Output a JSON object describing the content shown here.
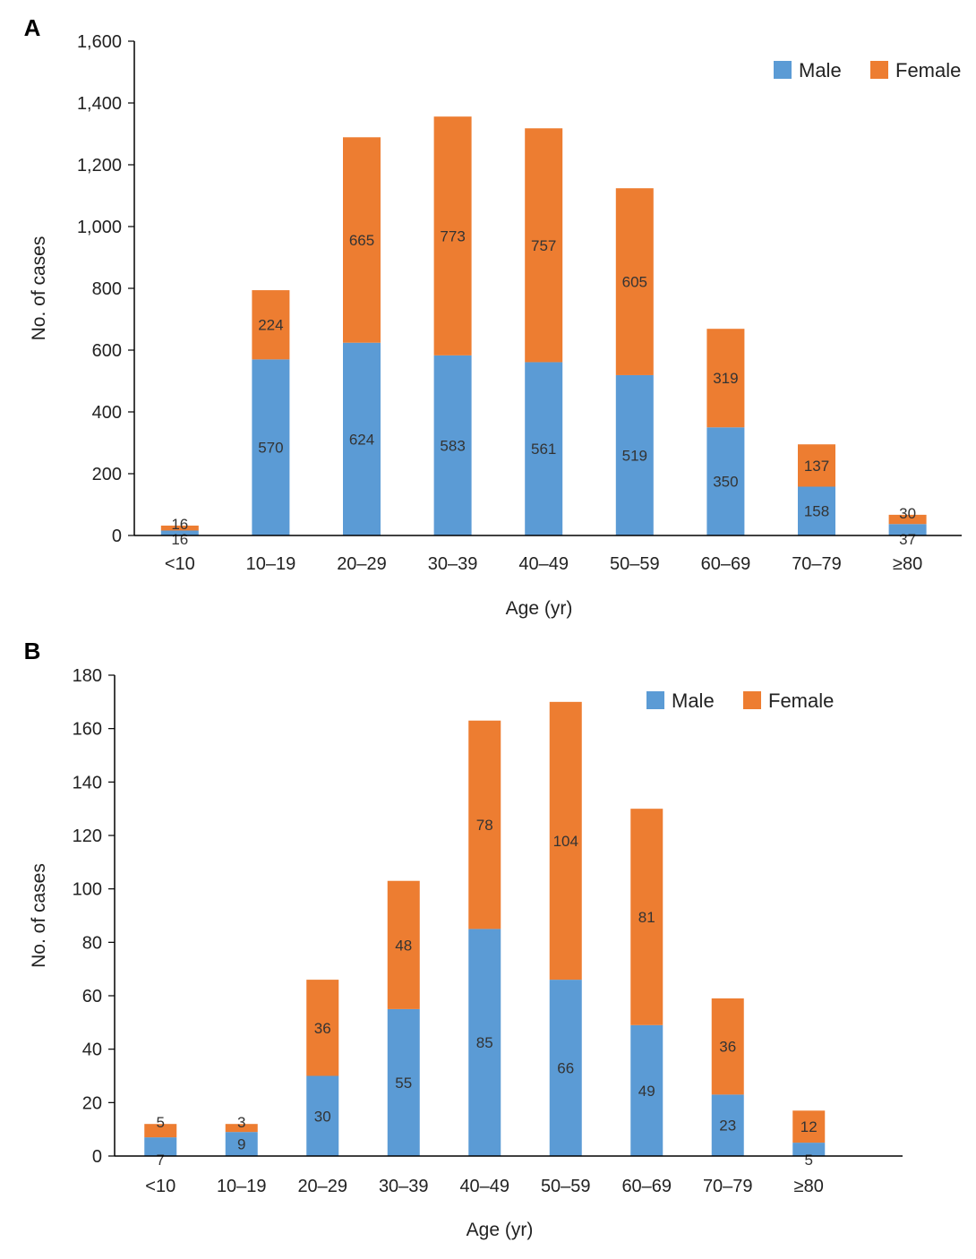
{
  "colors": {
    "male": "#5b9bd5",
    "female": "#ed7d31",
    "axis": "#000000"
  },
  "chart_data": [
    {
      "panel": "A",
      "type": "bar",
      "stacked": true,
      "categories": [
        "<10",
        "10–19",
        "20–29",
        "30–39",
        "40–49",
        "50–59",
        "60–69",
        "70–79",
        "≥80"
      ],
      "series": [
        {
          "name": "Male",
          "values": [
            16,
            570,
            624,
            583,
            561,
            519,
            350,
            158,
            37
          ]
        },
        {
          "name": "Female",
          "values": [
            16,
            224,
            665,
            773,
            757,
            605,
            319,
            137,
            30
          ]
        }
      ],
      "xlabel": "Age (yr)",
      "ylabel": "No. of cases",
      "ylim": [
        0,
        1600
      ],
      "yticks": [
        0,
        200,
        400,
        600,
        800,
        1000,
        1200,
        1400,
        1600
      ],
      "ytick_labels": [
        "0",
        "200",
        "400",
        "600",
        "800",
        "1,000",
        "1,200",
        "1,400",
        "1,600"
      ],
      "legend": "top-right"
    },
    {
      "panel": "B",
      "type": "bar",
      "stacked": true,
      "categories": [
        "<10",
        "10–19",
        "20–29",
        "30–39",
        "40–49",
        "50–59",
        "60–69",
        "70–79",
        "≥80"
      ],
      "series": [
        {
          "name": "Male",
          "values": [
            7,
            9,
            30,
            55,
            85,
            66,
            49,
            23,
            5
          ]
        },
        {
          "name": "Female",
          "values": [
            5,
            3,
            36,
            48,
            78,
            104,
            81,
            36,
            12
          ]
        }
      ],
      "xlabel": "Age (yr)",
      "ylabel": "No. of cases",
      "ylim": [
        0,
        180
      ],
      "yticks": [
        0,
        20,
        40,
        60,
        80,
        100,
        120,
        140,
        160,
        180
      ],
      "ytick_labels": [
        "0",
        "20",
        "40",
        "60",
        "80",
        "100",
        "120",
        "140",
        "160",
        "180"
      ],
      "legend": "top-center"
    }
  ]
}
